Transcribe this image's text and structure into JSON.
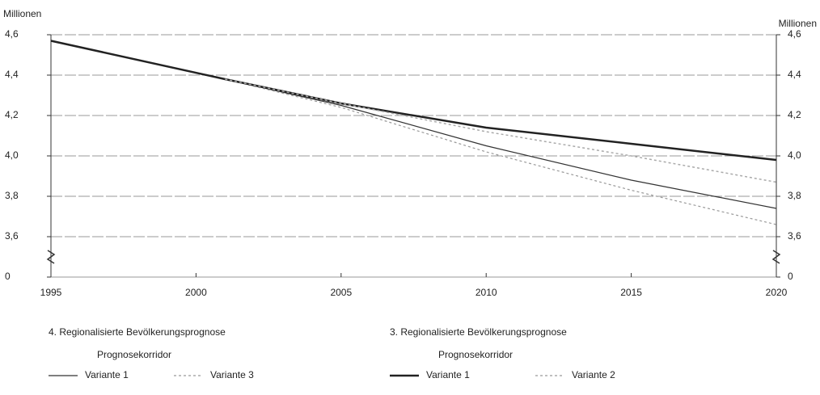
{
  "chart_data": {
    "type": "line",
    "ylabel": "Millionen",
    "y2label": "Millionen",
    "x": [
      1995,
      2001,
      2005,
      2010,
      2015,
      2020
    ],
    "xlim": [
      1995,
      2020
    ],
    "xticks": [
      1995,
      2000,
      2005,
      2010,
      2015,
      2020
    ],
    "ylim": [
      0,
      4.6
    ],
    "axis_break": [
      0,
      3.6
    ],
    "yticks": [
      0,
      {
        "value": 3.6,
        "label": "3,6"
      },
      {
        "value": 3.8,
        "label": "3,8"
      },
      {
        "value": 4.0,
        "label": "4,0"
      },
      {
        "value": 4.2,
        "label": "4,2"
      },
      {
        "value": 4.4,
        "label": "4,4"
      },
      {
        "value": 4.6,
        "label": "4,6"
      }
    ],
    "y2lim": [
      0,
      4.6
    ],
    "y2ticks": [
      0,
      {
        "value": 3.6,
        "label": "3,6"
      },
      {
        "value": 3.8,
        "label": "3,8"
      },
      {
        "value": 4.0,
        "label": "4,0"
      },
      {
        "value": 4.2,
        "label": "4,2"
      },
      {
        "value": 4.4,
        "label": "4,4"
      },
      {
        "value": 4.6,
        "label": "4,6"
      }
    ],
    "grid": true,
    "legend_groups": [
      {
        "title": "4. Regionalisierte Bevölkerungsprognose",
        "subtitle": "Prognosekorridor"
      },
      {
        "title": "3. Regionalisierte Bevölkerungsprognose",
        "subtitle": "Prognosekorridor"
      }
    ],
    "series": [
      {
        "name": "Variante 1",
        "color": "#333333",
        "style": "solid",
        "width": 1.2,
        "values": [
          null,
          4.38,
          4.25,
          4.05,
          3.88,
          3.74
        ]
      },
      {
        "name": "Variante 3",
        "color": "#999999",
        "style": "dotted",
        "width": 1.2,
        "values": [
          null,
          4.38,
          4.24,
          4.02,
          3.83,
          3.66
        ]
      },
      {
        "name": "Variante 1",
        "color": "#222222",
        "style": "solid",
        "width": 2.5,
        "values": [
          4.57,
          4.38,
          4.26,
          4.14,
          4.06,
          3.98
        ]
      },
      {
        "name": "Variante 2",
        "color": "#aaaaaa",
        "style": "dotted",
        "width": 1.5,
        "values": [
          null,
          4.38,
          4.26,
          4.12,
          4.0,
          3.87
        ]
      }
    ]
  }
}
